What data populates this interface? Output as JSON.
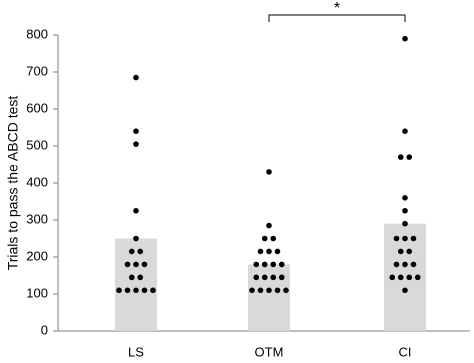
{
  "chart_data": {
    "type": "bar",
    "y_label": "Trials to pass the ABCD test",
    "categories": [
      "LS",
      "OTM",
      "CI"
    ],
    "values": [
      250,
      180,
      290
    ],
    "color": "#d9d9d9",
    "points": [
      [
        685,
        540,
        505,
        325,
        250,
        215,
        215,
        180,
        180,
        180,
        145,
        145,
        110,
        110,
        110,
        110,
        110
      ],
      [
        430,
        285,
        250,
        250,
        215,
        215,
        215,
        180,
        180,
        180,
        180,
        145,
        145,
        145,
        145,
        110,
        110,
        110,
        110,
        110
      ],
      [
        790,
        540,
        470,
        470,
        360,
        325,
        290,
        250,
        250,
        250,
        215,
        215,
        180,
        180,
        180,
        145,
        145,
        145,
        145,
        110
      ]
    ],
    "point_color": "#000000",
    "ylim": [
      0,
      800
    ],
    "yticks": [
      0,
      100,
      200,
      300,
      400,
      500,
      600,
      700,
      800
    ],
    "annotation": {
      "text": "*",
      "from": 1,
      "to": 2
    }
  }
}
